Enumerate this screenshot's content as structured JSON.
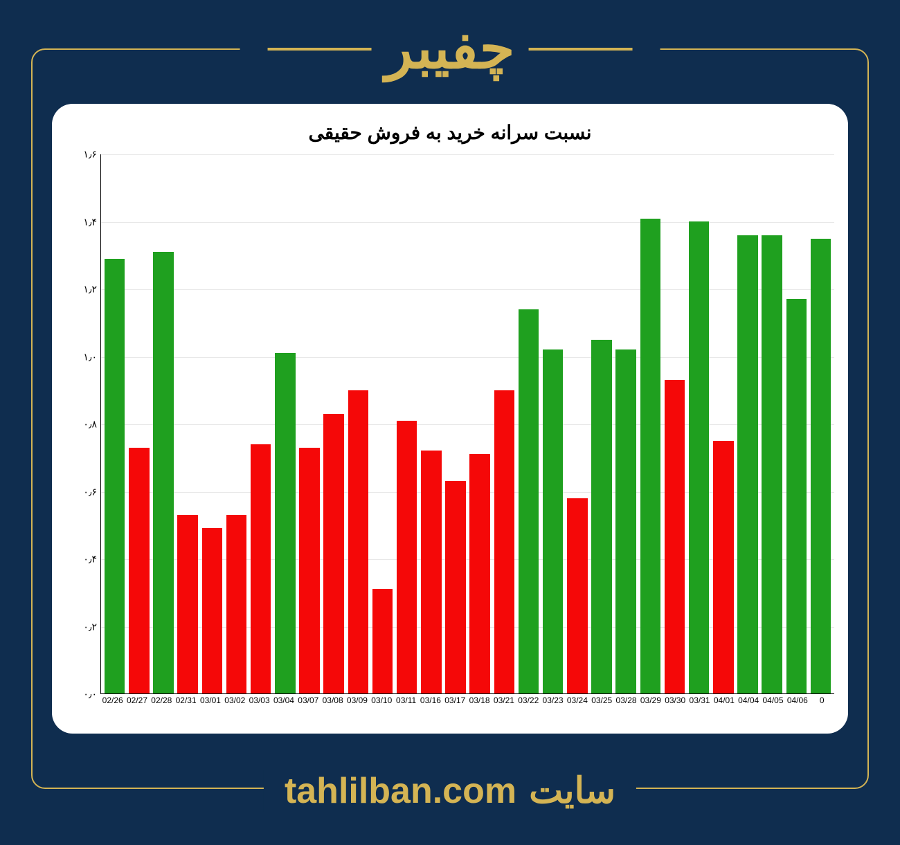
{
  "header": {
    "title": "چفیبر"
  },
  "footer": {
    "label": "سایت",
    "url": "tahlilban.com"
  },
  "chart": {
    "type": "bar",
    "title": "نسبت سرانه خرید به فروش حقیقی",
    "background_color": "#ffffff",
    "grid_color": "#e8e8e8",
    "axis_color": "#000000",
    "title_fontsize": 28,
    "label_fontsize": 12,
    "ylim": [
      0.0,
      1.6
    ],
    "ytick_step": 0.2,
    "yticks": [
      "۰٫۰",
      "۰٫۲",
      "۰٫۴",
      "۰٫۶",
      "۰٫۸",
      "۱٫۰",
      "۱٫۲",
      "۱٫۴",
      "۱٫۶"
    ],
    "categories": [
      "02/26",
      "02/27",
      "02/28",
      "02/31",
      "03/01",
      "03/02",
      "03/03",
      "03/04",
      "03/07",
      "03/08",
      "03/09",
      "03/10",
      "03/11",
      "03/16",
      "03/17",
      "03/18",
      "03/21",
      "03/22",
      "03/23",
      "03/24",
      "03/25",
      "03/28",
      "03/29",
      "03/30",
      "03/31",
      "04/01",
      "04/04",
      "04/05",
      "04/06",
      "0"
    ],
    "values": [
      1.29,
      0.73,
      1.31,
      0.53,
      0.49,
      0.53,
      0.74,
      1.01,
      0.73,
      0.83,
      0.9,
      0.31,
      0.81,
      0.72,
      0.63,
      0.71,
      0.9,
      1.14,
      1.02,
      0.58,
      1.05,
      1.02,
      1.41,
      0.93,
      1.4,
      0.75,
      1.36,
      1.36,
      1.17,
      1.35
    ],
    "bar_colors": [
      "#1fa01f",
      "#f50808",
      "#1fa01f",
      "#f50808",
      "#f50808",
      "#f50808",
      "#f50808",
      "#1fa01f",
      "#f50808",
      "#f50808",
      "#f50808",
      "#f50808",
      "#f50808",
      "#f50808",
      "#f50808",
      "#f50808",
      "#f50808",
      "#1fa01f",
      "#1fa01f",
      "#f50808",
      "#1fa01f",
      "#1fa01f",
      "#1fa01f",
      "#f50808",
      "#1fa01f",
      "#f50808",
      "#1fa01f",
      "#1fa01f",
      "#1fa01f",
      "#1fa01f"
    ],
    "bar_width": 0.84
  },
  "colors": {
    "page_background": "#0f2d4f",
    "accent": "#d4b454"
  }
}
